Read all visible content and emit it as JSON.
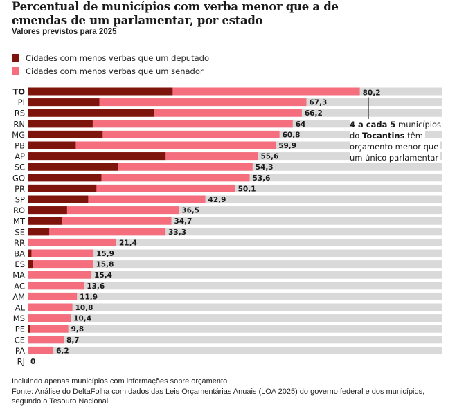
{
  "chart_data": {
    "type": "bar",
    "orientation": "horizontal",
    "stacked": "overlay",
    "title": "Percentual de municípios com verba menor que a de emendas de um parlamentar, por estado",
    "subtitle": "Valores previstos para 2025",
    "xlim": [
      0,
      100
    ],
    "unit": "%",
    "grid": false,
    "legend_position": "top-left",
    "categories": [
      "TO",
      "PI",
      "RS",
      "RN",
      "MG",
      "PB",
      "AP",
      "SC",
      "GO",
      "PR",
      "SP",
      "RO",
      "MT",
      "SE",
      "RR",
      "BA",
      "ES",
      "MA",
      "AC",
      "AM",
      "AL",
      "MS",
      "PE",
      "CE",
      "PA",
      "RJ"
    ],
    "series": [
      {
        "name": "Cidades com menos verbas que um senador",
        "color": "#f46e7e",
        "values": [
          80.2,
          67.3,
          66.2,
          64,
          60.8,
          59.9,
          55.6,
          54.3,
          53.6,
          50.1,
          42.9,
          36.5,
          34.7,
          33.3,
          21.4,
          15.9,
          15.8,
          15.4,
          13.6,
          11.9,
          10.8,
          10.4,
          9.8,
          8.7,
          6.2,
          0
        ],
        "labels": [
          "80,2",
          "67,3",
          "66,2",
          "64",
          "60,8",
          "59,9",
          "55,6",
          "54,3",
          "53,6",
          "50,1",
          "42,9",
          "36,5",
          "34,7",
          "33,3",
          "21,4",
          "15,9",
          "15,8",
          "15,4",
          "13,6",
          "11,9",
          "10,8",
          "10,4",
          "9,8",
          "8,7",
          "6,2",
          "0"
        ]
      },
      {
        "name": "Cidades com menos verbas que um deputado",
        "color": "#7d150c",
        "values": [
          35.0,
          17.3,
          30.5,
          15.7,
          18.1,
          11.6,
          33.3,
          21.8,
          17.8,
          16.6,
          14.6,
          9.5,
          8.2,
          5.2,
          0,
          0.9,
          1.2,
          0,
          0,
          0,
          0,
          0,
          0.5,
          0,
          0,
          0
        ],
        "estimated": true
      }
    ],
    "track_color": "#d9d9d9",
    "highlight_category": "TO",
    "annotation": {
      "target": "TO",
      "lines": [
        [
          {
            "text": "4 a cada 5",
            "bold": true
          },
          {
            "text": " municípios",
            "bold": false
          }
        ],
        [
          {
            "text": "do ",
            "bold": false
          },
          {
            "text": "Tocantins",
            "bold": true
          },
          {
            "text": " têm",
            "bold": false
          }
        ],
        [
          {
            "text": "orçamento menor que",
            "bold": false
          }
        ],
        [
          {
            "text": "um único parlamentar",
            "bold": false
          }
        ]
      ]
    }
  },
  "header": {
    "title": "Percentual de municípios com verba menor que a de emendas de um parlamentar, por estado",
    "subtitle": "Valores previstos para 2025"
  },
  "legend": {
    "items": [
      {
        "label": "Cidades com menos verbas que um deputado",
        "color": "#7d150c"
      },
      {
        "label": "Cidades com menos verbas que um senador",
        "color": "#f46e7e"
      }
    ]
  },
  "footer": {
    "note": "Incluindo apenas municípios com informações sobre orçamento",
    "source": "Fonte: Análise do DeltaFolha com dados das Leis Orçamentárias Anuais (LOA 2025) do governo federal e dos municípios, segundo o Tesouro Nacional"
  }
}
